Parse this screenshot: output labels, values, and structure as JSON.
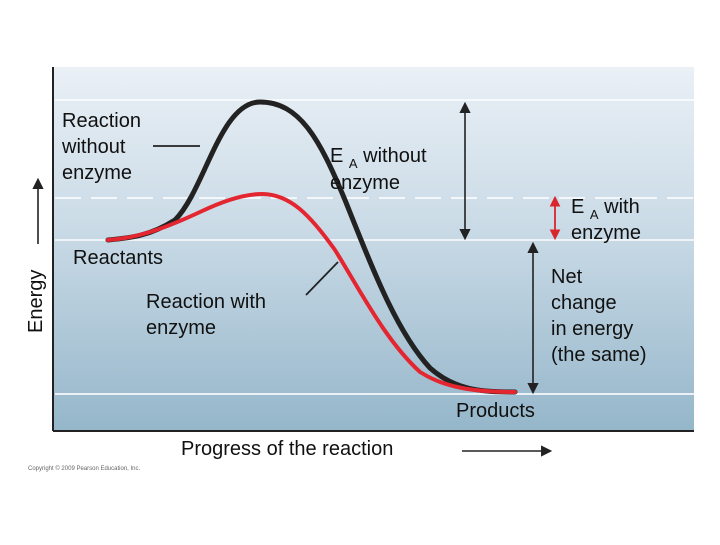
{
  "diagram": {
    "y_axis_label": "Energy",
    "x_axis_label": "Progress of the reaction",
    "labels": {
      "reaction_without_enzyme": [
        "Reaction",
        "without",
        "enzyme"
      ],
      "ea_without_enzyme": {
        "main": "E",
        "sub": "A",
        "rest": " without",
        "line2": "enzyme"
      },
      "ea_with_enzyme": {
        "main": "E",
        "sub": "A",
        "rest": " with",
        "line2": "enzyme"
      },
      "reactants": "Reactants",
      "reaction_with_enzyme": [
        "Reaction with",
        "enzyme"
      ],
      "net_change": [
        "Net",
        "change",
        "in energy",
        "(the same)"
      ],
      "products": "Products"
    },
    "copyright": "Copyright © 2009 Pearson Education, Inc.",
    "colors": {
      "curve_without_enzyme": "#222222",
      "curve_with_enzyme": "#e3262f",
      "ea_with_arrow": "#d8262c",
      "background_top": "#e8eef4",
      "background_bottom": "#9fbccd",
      "axis": "#222222"
    }
  }
}
